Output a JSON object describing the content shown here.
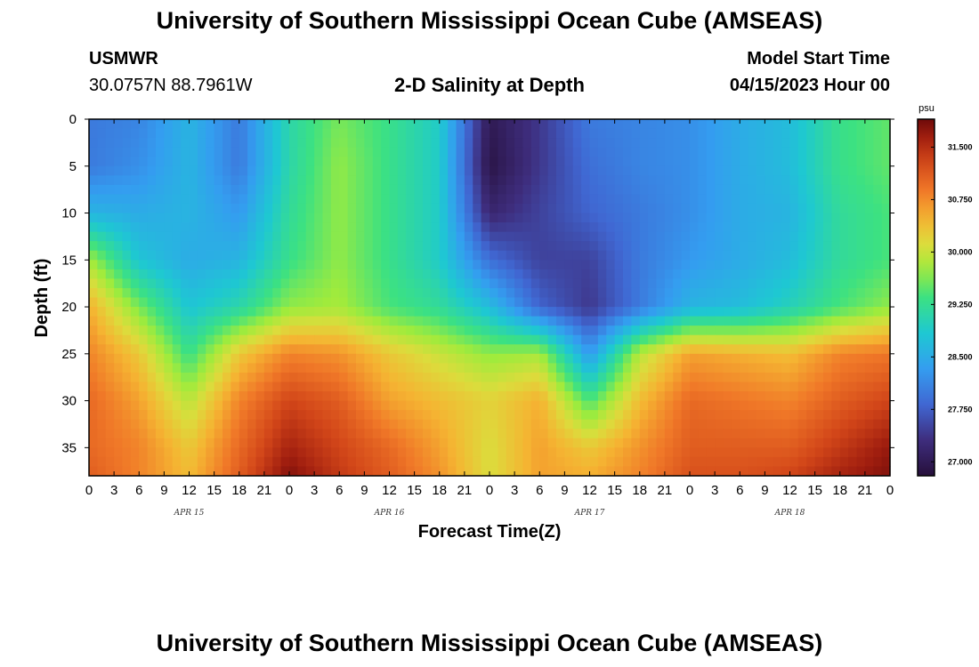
{
  "header": {
    "title": "University of Southern Mississippi Ocean Cube (AMSEAS)",
    "station": "USMWR",
    "coords": "30.0757N  88.7961W",
    "subtitle": "2-D Salinity at Depth",
    "start_label": "Model Start Time",
    "start_value": "04/15/2023 Hour 00"
  },
  "footer": {
    "title": "University of Southern Mississippi Ocean Cube (AMSEAS)"
  },
  "chart_data": {
    "type": "heatmap",
    "title": "2-D Salinity at Depth",
    "xlabel": "Forecast Time(Z)",
    "ylabel": "Depth (ft)",
    "x_tick_labels": [
      "0",
      "3",
      "6",
      "9",
      "12",
      "15",
      "18",
      "21",
      "0",
      "3",
      "6",
      "9",
      "12",
      "15",
      "18",
      "21",
      "0",
      "3",
      "6",
      "9",
      "12",
      "15",
      "18",
      "21",
      "0",
      "3",
      "6",
      "9",
      "12",
      "15",
      "18",
      "21",
      "0"
    ],
    "day_labels": [
      "APR 15",
      "APR 16",
      "APR 17",
      "APR 18"
    ],
    "xlim_hours": [
      0,
      96
    ],
    "ylim_ft": [
      0,
      38
    ],
    "y_ticks": [
      0,
      5,
      10,
      15,
      20,
      25,
      30,
      35
    ],
    "colorbar": {
      "unit": "psu",
      "range": [
        26.8,
        31.9
      ],
      "ticks": [
        "27.000",
        "27.750",
        "28.500",
        "29.250",
        "30.000",
        "30.750",
        "31.500"
      ],
      "tick_values": [
        27.0,
        27.75,
        28.5,
        29.25,
        30.0,
        30.75,
        31.5
      ]
    },
    "hours": [
      0,
      6,
      12,
      18,
      24,
      30,
      36,
      42,
      48,
      54,
      60,
      66,
      72,
      78,
      84,
      90,
      96
    ],
    "depths_ft": [
      0,
      5,
      10,
      15,
      20,
      25,
      30,
      35,
      38
    ],
    "salinity_psu": [
      [
        28.0,
        28.1,
        28.6,
        28.0,
        29.1,
        29.6,
        29.3,
        28.9,
        27.0,
        27.4,
        28.0,
        28.1,
        28.2,
        28.5,
        28.7,
        29.3,
        29.5
      ],
      [
        28.0,
        28.2,
        28.6,
        28.0,
        29.1,
        29.7,
        29.3,
        28.9,
        26.9,
        27.4,
        27.9,
        28.1,
        28.2,
        28.5,
        28.7,
        29.3,
        29.5
      ],
      [
        28.6,
        28.5,
        28.6,
        28.3,
        29.2,
        29.7,
        29.3,
        28.9,
        27.2,
        27.5,
        27.8,
        28.0,
        28.2,
        28.5,
        28.6,
        29.2,
        29.4
      ],
      [
        29.8,
        28.8,
        28.5,
        28.6,
        29.3,
        29.7,
        29.3,
        28.9,
        27.9,
        27.5,
        27.5,
        28.0,
        28.3,
        28.5,
        28.7,
        29.2,
        29.4
      ],
      [
        30.5,
        29.6,
        28.8,
        29.1,
        29.7,
        29.8,
        29.4,
        29.2,
        28.7,
        27.8,
        27.4,
        28.0,
        28.6,
        28.7,
        29.0,
        29.4,
        29.7
      ],
      [
        30.8,
        30.3,
        29.3,
        30.3,
        30.8,
        30.7,
        30.3,
        30.0,
        29.7,
        29.8,
        28.3,
        29.9,
        30.6,
        30.5,
        30.4,
        30.8,
        30.9
      ],
      [
        31.0,
        30.6,
        29.9,
        30.8,
        31.3,
        31.1,
        30.6,
        30.4,
        30.2,
        30.5,
        29.4,
        30.4,
        31.0,
        30.9,
        30.8,
        31.1,
        31.3
      ],
      [
        31.0,
        30.8,
        30.3,
        31.0,
        31.6,
        31.3,
        31.0,
        30.6,
        30.1,
        30.6,
        30.3,
        30.7,
        31.1,
        31.1,
        31.1,
        31.4,
        31.7
      ],
      [
        31.1,
        30.8,
        30.4,
        31.1,
        31.8,
        31.4,
        31.1,
        30.7,
        30.1,
        30.6,
        30.5,
        30.8,
        31.2,
        31.2,
        31.3,
        31.6,
        31.8
      ]
    ]
  }
}
